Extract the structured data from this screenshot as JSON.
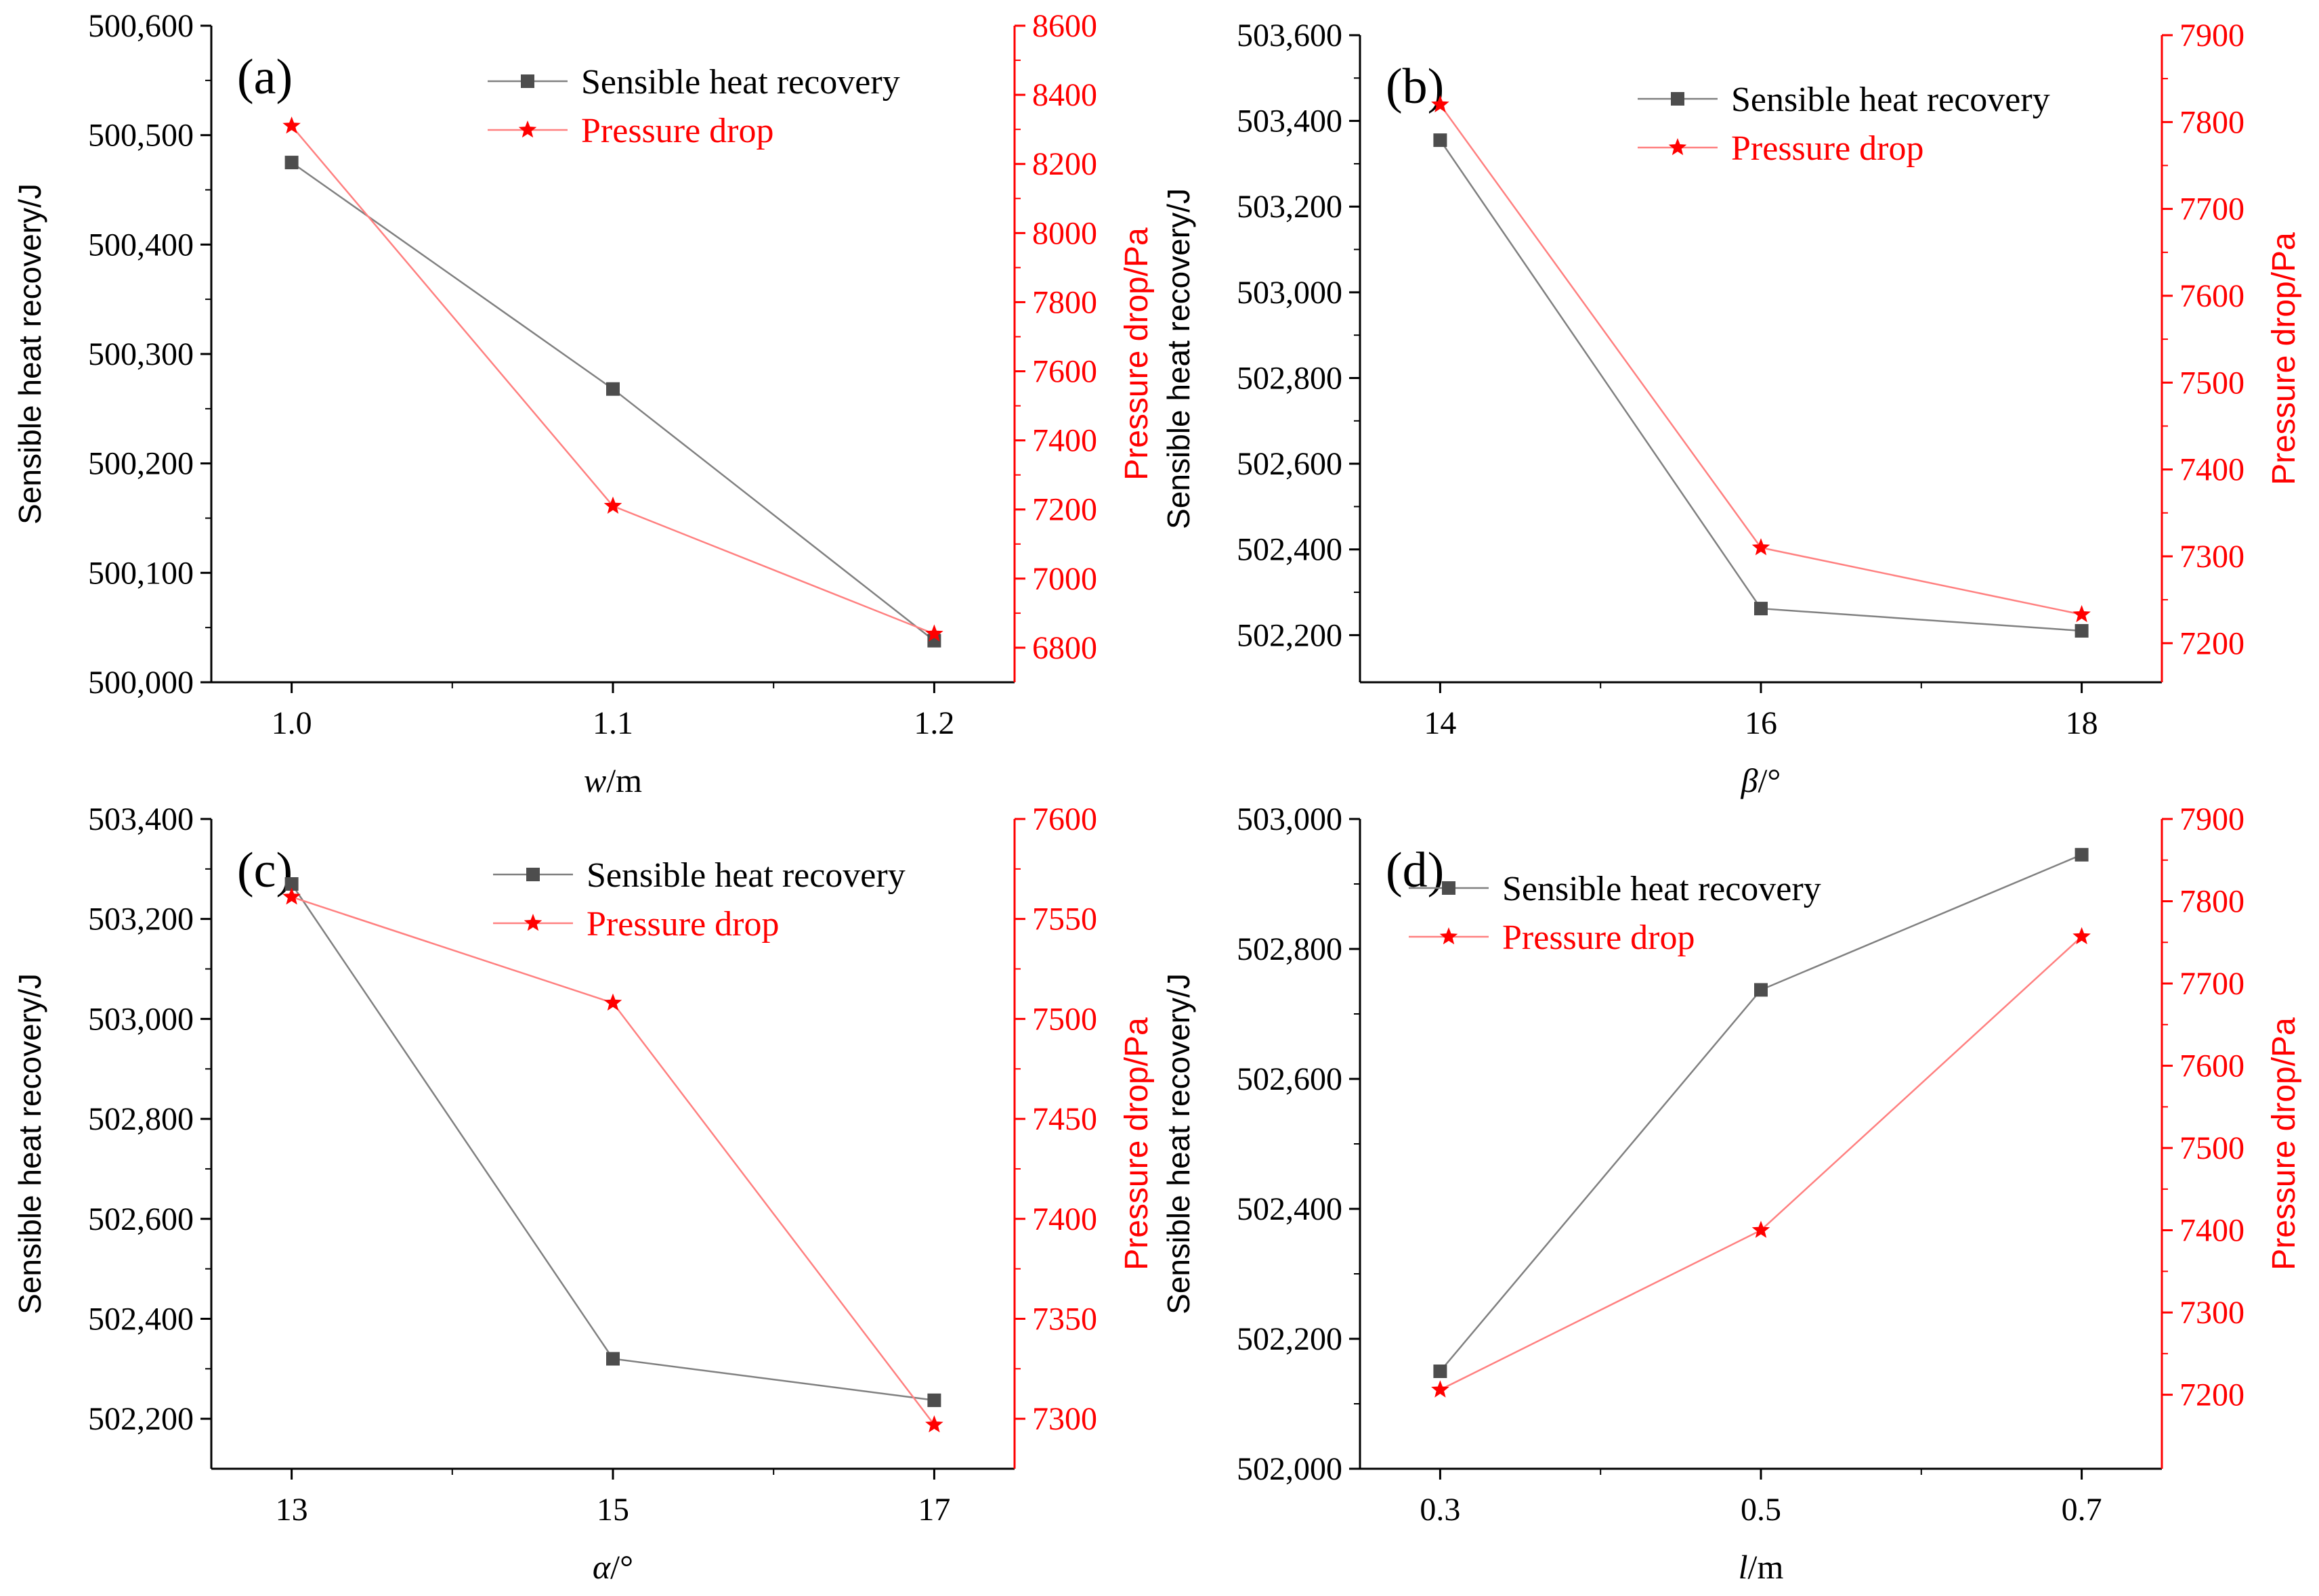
{
  "colors": {
    "heat": "#4d4d4d",
    "heat_line": "#808080",
    "pressure": "#ff0000",
    "pressure_line": "#ff8080",
    "axis_right": "#ff0000",
    "axis_left": "#000000"
  },
  "chart_data": [
    {
      "type": "line",
      "panel": "(a)",
      "x": [
        "1.0",
        "1.1",
        "1.2"
      ],
      "x_numeric": [
        1.0,
        1.1,
        1.2
      ],
      "x_minor_ticks": [
        1.05,
        1.15
      ],
      "xlim": [
        0.975,
        1.225
      ],
      "xlabel_symbol": "w",
      "xlabel_unit": "/m",
      "ylabel_left": "Sensible heat recovery/J",
      "ylabel_right": "Pressure drop/Pa",
      "ylim_left": [
        500000,
        500600
      ],
      "yticks_left": [
        500000,
        500100,
        500200,
        500300,
        500400,
        500500,
        500600
      ],
      "ytick_labels_left": [
        "500,000",
        "500,100",
        "500,200",
        "500,300",
        "500,400",
        "500,500",
        "500,600"
      ],
      "ylim_right": [
        6700,
        8600
      ],
      "yticks_right": [
        6800,
        7000,
        7200,
        7400,
        7600,
        7800,
        8000,
        8200,
        8400,
        8600
      ],
      "ytick_labels_right": [
        "6800",
        "7000",
        "7200",
        "7400",
        "7600",
        "7800",
        "8000",
        "8200",
        "8400",
        "8600"
      ],
      "legend_position": "top-right",
      "series": [
        {
          "name": "Sensible heat recovery",
          "axis": "left",
          "marker": "square",
          "values": [
            500475,
            500268,
            500038
          ]
        },
        {
          "name": "Pressure drop",
          "axis": "right",
          "marker": "star",
          "values": [
            8310,
            7210,
            6840
          ]
        }
      ]
    },
    {
      "type": "line",
      "panel": "(b)",
      "x": [
        "14",
        "16",
        "18"
      ],
      "x_numeric": [
        14,
        16,
        18
      ],
      "x_minor_ticks": [
        15,
        17
      ],
      "xlim": [
        13.5,
        18.5
      ],
      "xlabel_symbol": "β",
      "xlabel_unit": "/°",
      "ylabel_left": "Sensible heat recovery/J",
      "ylabel_right": "Pressure drop/Pa",
      "ylim_left": [
        502090,
        503600
      ],
      "yticks_left": [
        502200,
        502400,
        502600,
        502800,
        503000,
        503200,
        503400,
        503600
      ],
      "ytick_labels_left": [
        "502,200",
        "502,400",
        "502,600",
        "502,800",
        "503,000",
        "503,200",
        "503,400",
        "503,600"
      ],
      "ylim_right": [
        7155,
        7900
      ],
      "yticks_right": [
        7200,
        7300,
        7400,
        7500,
        7600,
        7700,
        7800,
        7900
      ],
      "ytick_labels_right": [
        "7200",
        "7300",
        "7400",
        "7500",
        "7600",
        "7700",
        "7800",
        "7900"
      ],
      "legend_position": "top-right",
      "series": [
        {
          "name": "Sensible heat recovery",
          "axis": "left",
          "marker": "square",
          "values": [
            503355,
            502262,
            502210
          ]
        },
        {
          "name": "Pressure drop",
          "axis": "right",
          "marker": "star",
          "values": [
            7820,
            7310,
            7233
          ]
        }
      ]
    },
    {
      "type": "line",
      "panel": "(c)",
      "x": [
        "13",
        "15",
        "17"
      ],
      "x_numeric": [
        13,
        15,
        17
      ],
      "x_minor_ticks": [
        14,
        16
      ],
      "xlim": [
        12.5,
        17.5
      ],
      "xlabel_symbol": "α",
      "xlabel_unit": "/°",
      "ylabel_left": "Sensible heat recovery/J",
      "ylabel_right": "Pressure drop/Pa",
      "ylim_left": [
        502100,
        503400
      ],
      "yticks_left": [
        502200,
        502400,
        502600,
        502800,
        503000,
        503200,
        503400
      ],
      "ytick_labels_left": [
        "502,200",
        "502,400",
        "502,600",
        "502,800",
        "503,000",
        "503,200",
        "503,400"
      ],
      "ylim_right": [
        7275,
        7600
      ],
      "yticks_right": [
        7300,
        7350,
        7400,
        7450,
        7500,
        7550,
        7600
      ],
      "ytick_labels_right": [
        "7300",
        "7350",
        "7400",
        "7450",
        "7500",
        "7550",
        "7600"
      ],
      "legend_position": "top-right",
      "series": [
        {
          "name": "Sensible heat recovery",
          "axis": "left",
          "marker": "square",
          "values": [
            503270,
            502320,
            502237
          ]
        },
        {
          "name": "Pressure drop",
          "axis": "right",
          "marker": "star",
          "values": [
            7561,
            7508,
            7297
          ]
        }
      ]
    },
    {
      "type": "line",
      "panel": "(d)",
      "x": [
        "0.3",
        "0.5",
        "0.7"
      ],
      "x_numeric": [
        0.3,
        0.5,
        0.7
      ],
      "x_minor_ticks": [
        0.4,
        0.6
      ],
      "xlim": [
        0.25,
        0.75
      ],
      "xlabel_symbol": "l",
      "xlabel_unit": "/m",
      "ylabel_left": "Sensible heat recovery/J",
      "ylabel_right": "Pressure drop/Pa",
      "ylim_left": [
        502000,
        503000
      ],
      "yticks_left": [
        502000,
        502200,
        502400,
        502600,
        502800,
        503000
      ],
      "ytick_labels_left": [
        "502,000",
        "502,200",
        "502,400",
        "502,600",
        "502,800",
        "503,000"
      ],
      "ylim_right": [
        7110,
        7900
      ],
      "yticks_right": [
        7200,
        7300,
        7400,
        7500,
        7600,
        7700,
        7800,
        7900
      ],
      "ytick_labels_right": [
        "7200",
        "7300",
        "7400",
        "7500",
        "7600",
        "7700",
        "7800",
        "7900"
      ],
      "legend_position": "top-left",
      "series": [
        {
          "name": "Sensible heat recovery",
          "axis": "left",
          "marker": "square",
          "values": [
            502150,
            502737,
            502945
          ]
        },
        {
          "name": "Pressure drop",
          "axis": "right",
          "marker": "star",
          "values": [
            7206,
            7400,
            7757
          ]
        }
      ]
    }
  ]
}
